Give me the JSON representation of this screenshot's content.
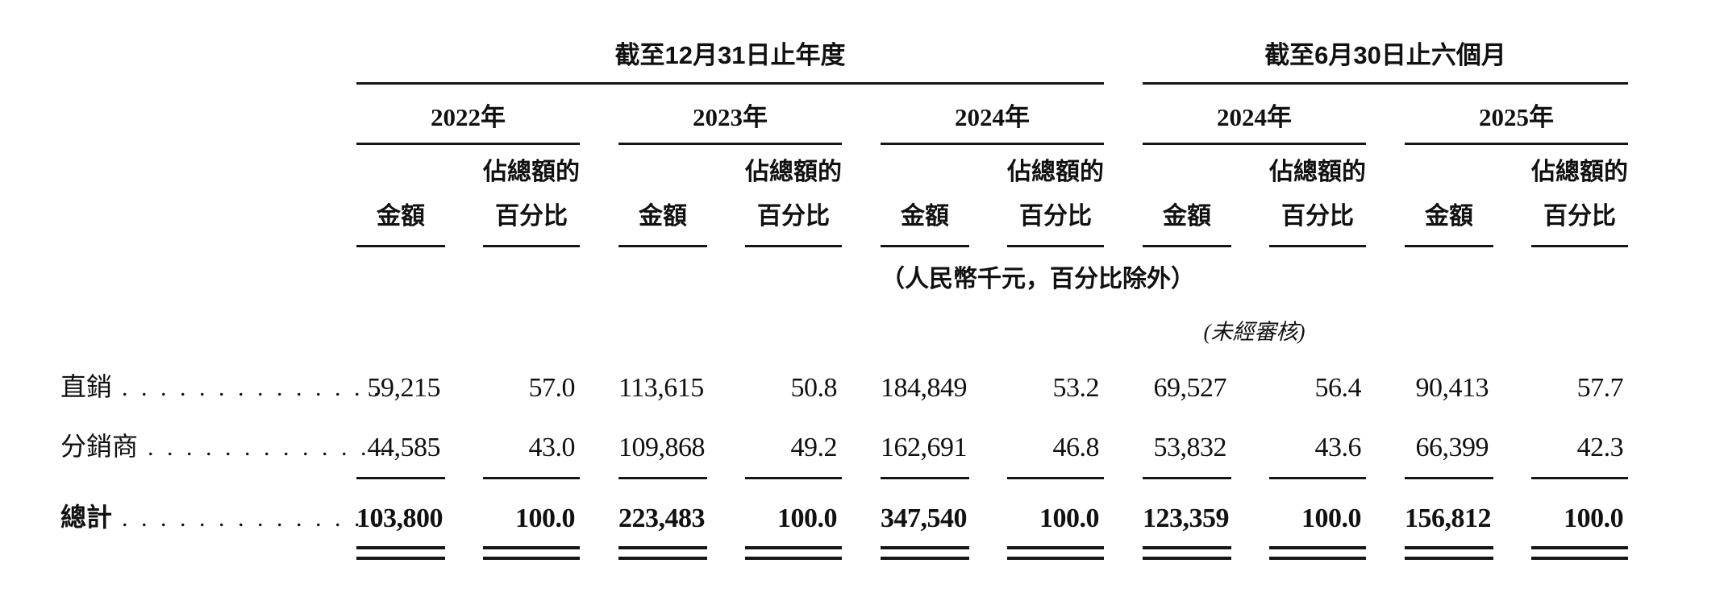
{
  "table": {
    "period_groups": [
      {
        "label": "截至12月31日止年度"
      },
      {
        "label": "截至6月30日止六個月"
      }
    ],
    "year_groups": [
      {
        "label": "2022年"
      },
      {
        "label": "2023年"
      },
      {
        "label": "2024年"
      },
      {
        "label": "2024年"
      },
      {
        "label": "2025年"
      }
    ],
    "col_headers": {
      "amount": "金額",
      "pct_line1": "佔總額的",
      "pct_line2": "百分比"
    },
    "notes": {
      "units": "（人民幣千元，百分比除外）",
      "unaudited": "(未經審核)"
    },
    "rows": [
      {
        "label": "直銷",
        "leader": ". . . . . . . . . . . . . .",
        "values": [
          "59,215",
          "57.0",
          "113,615",
          "50.8",
          "184,849",
          "53.2",
          "69,527",
          "56.4",
          "90,413",
          "57.7"
        ]
      },
      {
        "label": "分銷商",
        "leader": ". . . . . . . . . . . . .",
        "values": [
          "44,585",
          "43.0",
          "109,868",
          "49.2",
          "162,691",
          "46.8",
          "53,832",
          "43.6",
          "66,399",
          "42.3"
        ]
      },
      {
        "label": "總計",
        "leader": ". . . . . . . . . . . . . .",
        "values": [
          "103,800",
          "100.0",
          "223,483",
          "100.0",
          "347,540",
          "100.0",
          "123,359",
          "100.0",
          "156,812",
          "100.0"
        ]
      }
    ]
  }
}
